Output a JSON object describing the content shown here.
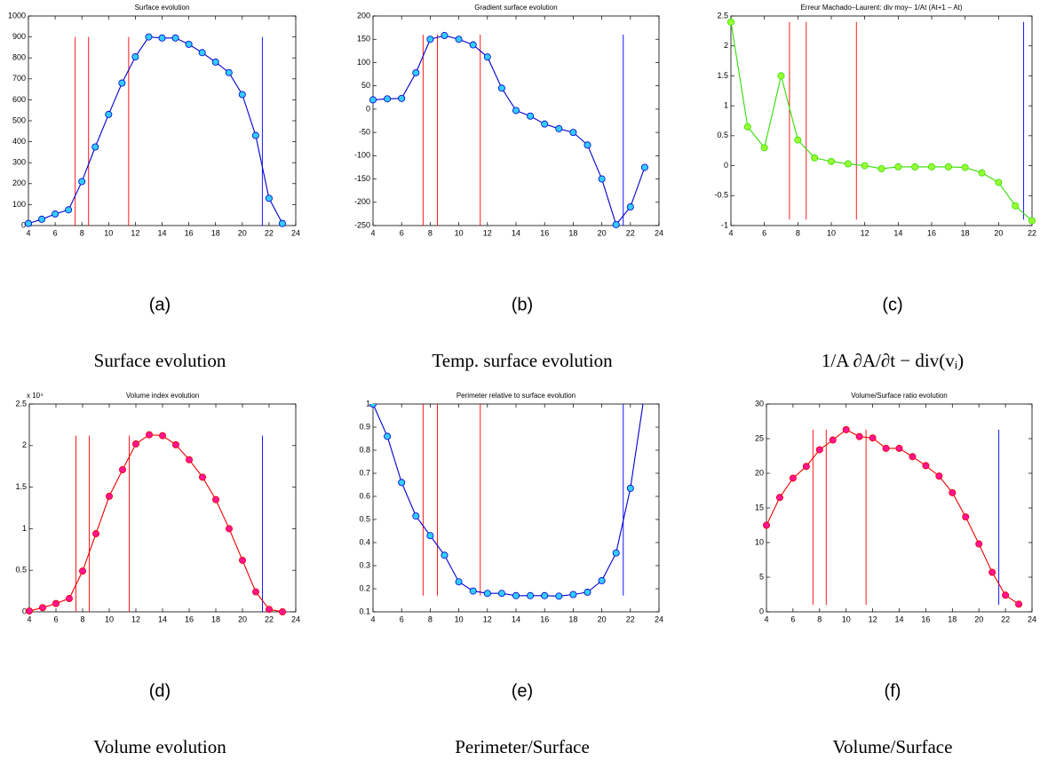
{
  "chart_data": [
    {
      "type": "line",
      "title": "Surface evolution",
      "panel_label": "(a)",
      "caption": "Surface evolution",
      "xlim": [
        4,
        24
      ],
      "xticks": [
        4,
        6,
        8,
        10,
        12,
        14,
        16,
        18,
        20,
        22,
        24
      ],
      "ylim": [
        0,
        1000
      ],
      "yticks": [
        0,
        100,
        200,
        300,
        400,
        500,
        600,
        700,
        800,
        900,
        1000
      ],
      "x": [
        4,
        5,
        6,
        7,
        8,
        9,
        10,
        11,
        12,
        13,
        14,
        15,
        16,
        17,
        18,
        19,
        20,
        21,
        22,
        23
      ],
      "values": [
        10,
        30,
        55,
        75,
        210,
        375,
        530,
        680,
        805,
        900,
        895,
        895,
        865,
        825,
        780,
        730,
        625,
        430,
        130,
        10
      ],
      "color": "#0000cc",
      "marker_color": "#33ccff",
      "vlines": [
        {
          "x": 7.5,
          "ymin": 0,
          "ymax": 900,
          "color": "#ff0000"
        },
        {
          "x": 8.5,
          "ymin": 0,
          "ymax": 900,
          "color": "#ff0000"
        },
        {
          "x": 11.5,
          "ymin": 0,
          "ymax": 900,
          "color": "#ff0000"
        },
        {
          "x": 21.5,
          "ymin": 0,
          "ymax": 900,
          "color": "#0000ff"
        }
      ]
    },
    {
      "type": "line",
      "title": "Gradient surface evolution",
      "panel_label": "(b)",
      "caption": "Temp. surface evolution",
      "xlim": [
        4,
        24
      ],
      "xticks": [
        4,
        6,
        8,
        10,
        12,
        14,
        16,
        18,
        20,
        22,
        24
      ],
      "ylim": [
        -250,
        200
      ],
      "yticks": [
        -250,
        -200,
        -150,
        -100,
        -50,
        0,
        50,
        100,
        150,
        200
      ],
      "x": [
        4,
        5,
        6,
        7,
        8,
        9,
        10,
        11,
        12,
        13,
        14,
        15,
        16,
        17,
        18,
        19,
        20,
        21,
        22,
        23
      ],
      "values": [
        20,
        22,
        23,
        78,
        150,
        158,
        150,
        138,
        112,
        45,
        -3,
        -15,
        -32,
        -42,
        -50,
        -77,
        -150,
        -248,
        -210,
        -125
      ],
      "color": "#0000cc",
      "marker_color": "#33ccff",
      "vlines": [
        {
          "x": 7.5,
          "ymin": -250,
          "ymax": 160,
          "color": "#ff0000"
        },
        {
          "x": 8.5,
          "ymin": -250,
          "ymax": 160,
          "color": "#ff0000"
        },
        {
          "x": 11.5,
          "ymin": -250,
          "ymax": 160,
          "color": "#ff0000"
        },
        {
          "x": 21.5,
          "ymin": -250,
          "ymax": 160,
          "color": "#0000ff"
        }
      ]
    },
    {
      "type": "line",
      "title": "Erreur Machado–Laurent: div moy– 1/At (At+1 – At)",
      "panel_label": "(c)",
      "caption": "1/A ∂A/∂t − div(vᵢ)",
      "xlim": [
        4,
        22
      ],
      "xticks": [
        4,
        6,
        8,
        10,
        12,
        14,
        16,
        18,
        20,
        22
      ],
      "ylim": [
        -1,
        2.5
      ],
      "yticks": [
        -1,
        -0.5,
        0,
        0.5,
        1,
        1.5,
        2,
        2.5
      ],
      "x": [
        4,
        5,
        6,
        7,
        8,
        9,
        10,
        11,
        12,
        13,
        14,
        15,
        16,
        17,
        18,
        19,
        20,
        21,
        22
      ],
      "values": [
        2.4,
        0.65,
        0.3,
        1.5,
        0.43,
        0.13,
        0.07,
        0.03,
        0,
        -0.05,
        -0.02,
        -0.02,
        -0.02,
        -0.02,
        -0.03,
        -0.12,
        -0.28,
        -0.67,
        -0.92
      ],
      "color": "#33dd00",
      "marker_color": "#99ff33",
      "vlines": [
        {
          "x": 7.5,
          "ymin": -0.9,
          "ymax": 2.4,
          "color": "#ff0000"
        },
        {
          "x": 8.5,
          "ymin": -0.9,
          "ymax": 2.4,
          "color": "#ff0000"
        },
        {
          "x": 11.5,
          "ymin": -0.9,
          "ymax": 2.4,
          "color": "#ff0000"
        },
        {
          "x": 21.5,
          "ymin": -0.9,
          "ymax": 2.4,
          "color": "#0000ff"
        }
      ]
    },
    {
      "type": "line",
      "title": "Volume index evolution",
      "panel_label": "(d)",
      "caption": "Volume evolution",
      "y_multiplier": "x 10⁴",
      "xlim": [
        4,
        24
      ],
      "xticks": [
        4,
        6,
        8,
        10,
        12,
        14,
        16,
        18,
        20,
        22,
        24
      ],
      "ylim": [
        0,
        2.5
      ],
      "yticks": [
        0,
        0.5,
        1,
        1.5,
        2,
        2.5
      ],
      "x": [
        4,
        5,
        6,
        7,
        8,
        9,
        10,
        11,
        12,
        13,
        14,
        15,
        16,
        17,
        18,
        19,
        20,
        21,
        22,
        23
      ],
      "values": [
        0.01,
        0.05,
        0.1,
        0.16,
        0.49,
        0.94,
        1.39,
        1.71,
        2.02,
        2.13,
        2.12,
        2.01,
        1.83,
        1.62,
        1.35,
        1.0,
        0.62,
        0.24,
        0.03,
        0
      ],
      "color": "#ee0000",
      "marker_color": "#ff1493",
      "vlines": [
        {
          "x": 7.5,
          "ymin": 0,
          "ymax": 2.12,
          "color": "#ff0000"
        },
        {
          "x": 8.5,
          "ymin": 0,
          "ymax": 2.12,
          "color": "#ff0000"
        },
        {
          "x": 11.5,
          "ymin": 0,
          "ymax": 2.12,
          "color": "#ff0000"
        },
        {
          "x": 21.5,
          "ymin": 0,
          "ymax": 2.12,
          "color": "#0000ff"
        }
      ]
    },
    {
      "type": "line",
      "title": "Perimeter relative to surface evolution",
      "panel_label": "(e)",
      "caption": "Perimeter/Surface",
      "xlim": [
        4,
        24
      ],
      "xticks": [
        4,
        6,
        8,
        10,
        12,
        14,
        16,
        18,
        20,
        22,
        24
      ],
      "ylim": [
        0.1,
        1
      ],
      "yticks": [
        0.1,
        0.2,
        0.3,
        0.4,
        0.5,
        0.6,
        0.7,
        0.8,
        0.9,
        1
      ],
      "x": [
        4,
        5,
        6,
        7,
        8,
        9,
        10,
        11,
        12,
        13,
        14,
        15,
        16,
        17,
        18,
        19,
        20,
        21,
        22,
        23
      ],
      "values": [
        1.0,
        0.86,
        0.66,
        0.515,
        0.43,
        0.345,
        0.23,
        0.19,
        0.18,
        0.18,
        0.17,
        0.17,
        0.17,
        0.168,
        0.175,
        0.185,
        0.235,
        0.355,
        0.635,
        1.05
      ],
      "color": "#0000cc",
      "marker_color": "#33ccff",
      "vlines": [
        {
          "x": 7.5,
          "ymin": 0.17,
          "ymax": 1,
          "color": "#ff0000"
        },
        {
          "x": 8.5,
          "ymin": 0.17,
          "ymax": 1,
          "color": "#ff0000"
        },
        {
          "x": 11.5,
          "ymin": 0.17,
          "ymax": 1,
          "color": "#ff0000"
        },
        {
          "x": 21.5,
          "ymin": 0.17,
          "ymax": 1,
          "color": "#0000ff"
        }
      ]
    },
    {
      "type": "line",
      "title": "Volume/Surface ratio evolution",
      "panel_label": "(f)",
      "caption": "Volume/Surface",
      "xlim": [
        4,
        24
      ],
      "xticks": [
        4,
        6,
        8,
        10,
        12,
        14,
        16,
        18,
        20,
        22,
        24
      ],
      "ylim": [
        0,
        30
      ],
      "yticks": [
        0,
        5,
        10,
        15,
        20,
        25,
        30
      ],
      "x": [
        4,
        5,
        6,
        7,
        8,
        9,
        10,
        11,
        12,
        13,
        14,
        15,
        16,
        17,
        18,
        19,
        20,
        21,
        22,
        23
      ],
      "values": [
        12.5,
        16.5,
        19.3,
        21,
        23.4,
        24.8,
        26.3,
        25.3,
        25.1,
        23.6,
        23.6,
        22.4,
        21.1,
        19.6,
        17.2,
        13.7,
        9.8,
        5.7,
        2.4,
        1.1
      ],
      "color": "#ee0000",
      "marker_color": "#ff1493",
      "vlines": [
        {
          "x": 7.5,
          "ymin": 1,
          "ymax": 26.3,
          "color": "#ff0000"
        },
        {
          "x": 8.5,
          "ymin": 1,
          "ymax": 26.3,
          "color": "#ff0000"
        },
        {
          "x": 11.5,
          "ymin": 1,
          "ymax": 26.3,
          "color": "#ff0000"
        },
        {
          "x": 21.5,
          "ymin": 1,
          "ymax": 26.3,
          "color": "#0000ff"
        }
      ]
    }
  ]
}
